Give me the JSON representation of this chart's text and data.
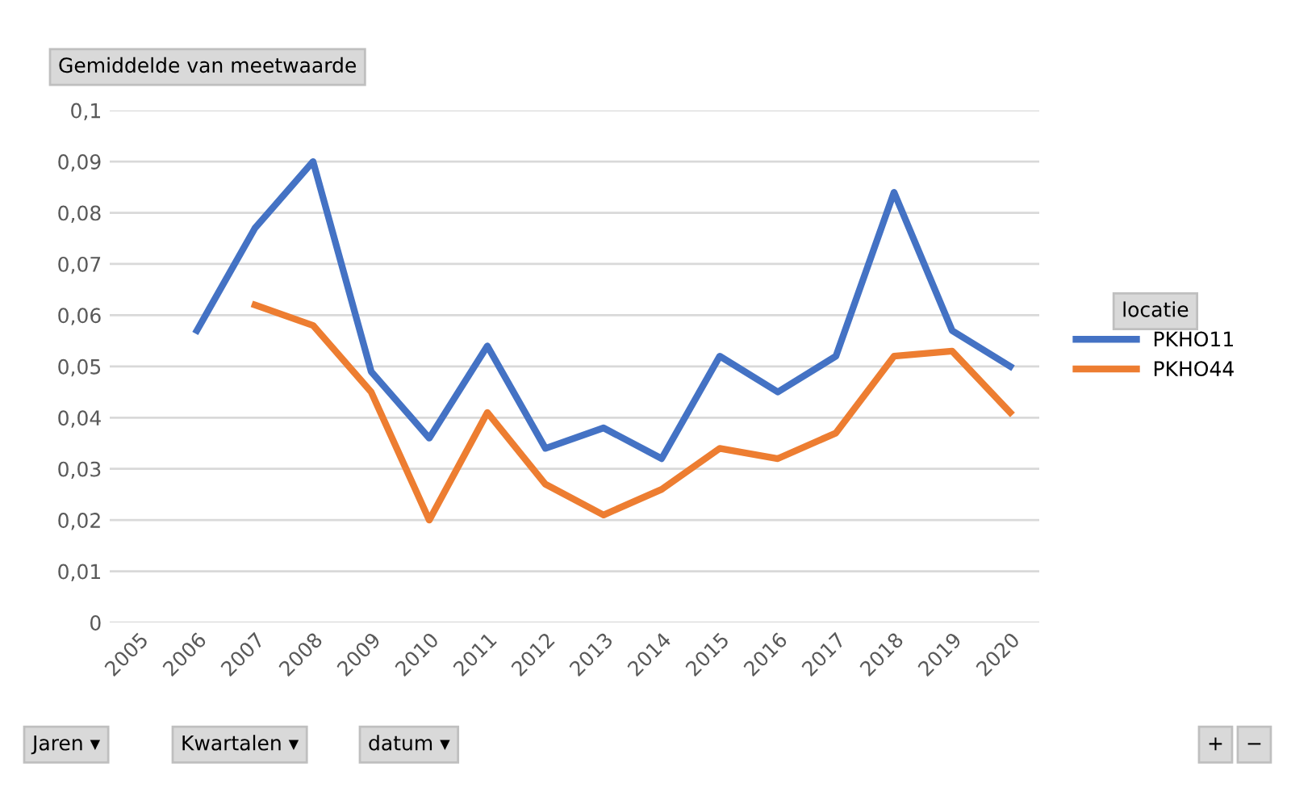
{
  "chart_data": {
    "type": "line",
    "title": "Gemiddelde van meetwaarde",
    "legend_title": "locatie",
    "legend": "right",
    "grid": "y",
    "line_style": "solid",
    "marker": "none",
    "categories": [
      "2005",
      "2006",
      "2007",
      "2008",
      "2009",
      "2010",
      "2011",
      "2012",
      "2013",
      "2014",
      "2015",
      "2016",
      "2017",
      "2018",
      "2019",
      "2020"
    ],
    "series": [
      {
        "name": "PKHO11",
        "color": "#4472c4",
        "values": [
          null,
          0.057,
          0.077,
          0.09,
          0.049,
          0.036,
          0.054,
          0.034,
          0.038,
          0.032,
          0.052,
          0.045,
          0.052,
          0.084,
          0.057,
          0.05
        ]
      },
      {
        "name": "PKHO44",
        "color": "#ed7d31",
        "values": [
          null,
          null,
          0.062,
          0.058,
          0.045,
          0.02,
          0.041,
          0.027,
          0.021,
          0.026,
          0.034,
          0.032,
          0.037,
          0.052,
          0.053,
          0.041
        ]
      }
    ],
    "ylim": [
      0,
      0.1
    ],
    "yticks": [
      0,
      {
        "value": 0.01,
        "label": "0,01"
      },
      {
        "value": 0.02,
        "label": "0,02"
      },
      {
        "value": 0.03,
        "label": "0,03"
      },
      {
        "value": 0.04,
        "label": "0,04"
      },
      {
        "value": 0.05,
        "label": "0,05"
      },
      {
        "value": 0.06,
        "label": "0,06"
      },
      {
        "value": 0.07,
        "label": "0,07"
      },
      {
        "value": 0.08,
        "label": "0,08"
      },
      {
        "value": 0.09,
        "label": "0,09"
      },
      {
        "value": 0.1,
        "label": "0,1"
      }
    ],
    "annotations": [
      "Jaren ▾",
      "Kwartalen ▾",
      "datum ▾",
      "+",
      "−"
    ]
  }
}
